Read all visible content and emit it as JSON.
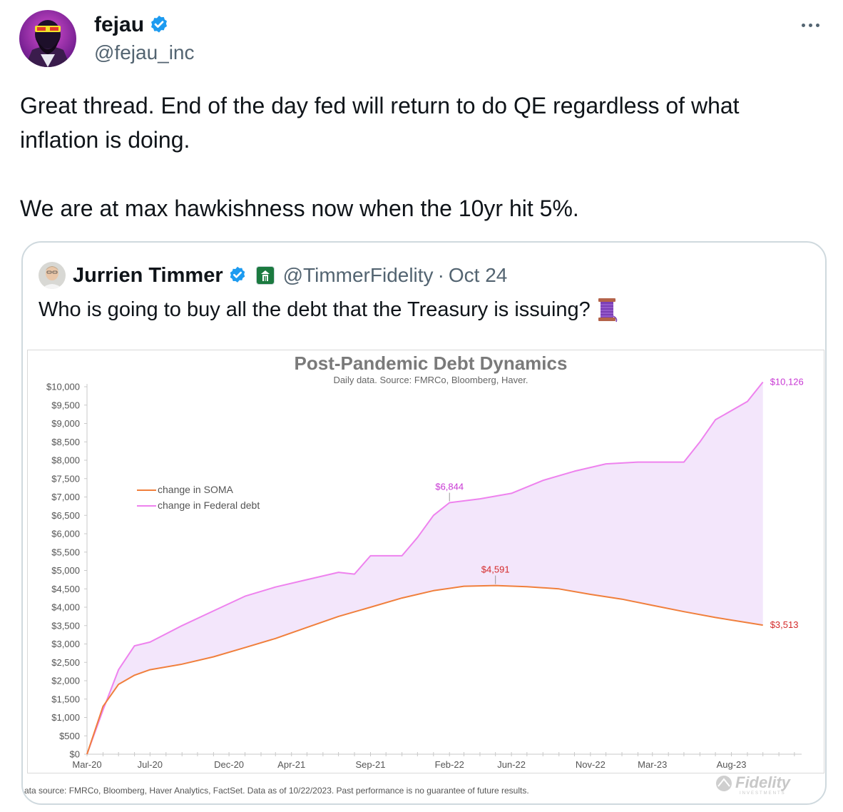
{
  "author": {
    "name": "fejau",
    "handle": "@fejau_inc",
    "verified_icon": "verified-badge-icon",
    "avatar_icon": "avatar-sunglasses-icon"
  },
  "more_icon": "more-options-icon",
  "tweet": {
    "text": "Great thread. End of the day fed will return to do QE regardless of what\ninflation is doing.\n\nWe are at max hawkishness now when the 10yr hit 5%."
  },
  "quote": {
    "name": "Jurrien Timmer",
    "handle": "@TimmerFidelity",
    "separator": "·",
    "date": "Oct 24",
    "text": "Who is going to buy all the debt that the Treasury is issuing?",
    "emoji_icon": "thread-spool-icon",
    "affiliate_icon": "fidelity-affiliate-icon"
  },
  "colors": {
    "soma": "#f07f3c",
    "debt": "#ee82ee",
    "fill": "#f3e6fb",
    "soma_label": "#d42a2a",
    "debt_label": "#c838d4"
  },
  "chart_data": {
    "type": "line",
    "title": "Post-Pandemic Debt Dynamics",
    "subtitle": "Daily data.  Source: FMRCo, Bloomberg, Haver.",
    "ylim": [
      0,
      10000
    ],
    "y_ticks": [
      "$0",
      "$500",
      "$1,000",
      "$1,500",
      "$2,000",
      "$2,500",
      "$3,000",
      "$3,500",
      "$4,000",
      "$4,500",
      "$5,000",
      "$5,500",
      "$6,000",
      "$6,500",
      "$7,000",
      "$7,500",
      "$8,000",
      "$8,500",
      "$9,000",
      "$9,500",
      "$10,000"
    ],
    "y_tick_values": [
      0,
      500,
      1000,
      1500,
      2000,
      2500,
      3000,
      3500,
      4000,
      4500,
      5000,
      5500,
      6000,
      6500,
      7000,
      7500,
      8000,
      8500,
      9000,
      9500,
      10000
    ],
    "x_ticks": [
      "Mar-20",
      "Jul-20",
      "Dec-20",
      "Apr-21",
      "Sep-21",
      "Feb-22",
      "Jun-22",
      "Nov-22",
      "Mar-23",
      "Aug-23"
    ],
    "x_tick_dates": [
      "2020-03",
      "2020-07",
      "2020-12",
      "2021-04",
      "2021-09",
      "2022-02",
      "2022-06",
      "2022-11",
      "2023-03",
      "2023-08"
    ],
    "legend": {
      "placement": "upper-left",
      "entries": [
        "change in SOMA",
        "change in Federal debt"
      ]
    },
    "series": [
      {
        "name": "change in SOMA",
        "x": [
          "2020-03",
          "2020-04",
          "2020-05",
          "2020-06",
          "2020-07",
          "2020-09",
          "2020-11",
          "2021-01",
          "2021-03",
          "2021-05",
          "2021-07",
          "2021-09",
          "2021-11",
          "2022-01",
          "2022-03",
          "2022-05",
          "2022-07",
          "2022-09",
          "2022-11",
          "2023-01",
          "2023-03",
          "2023-05",
          "2023-07",
          "2023-09",
          "2023-10"
        ],
        "values": [
          0,
          1300,
          1900,
          2150,
          2300,
          2450,
          2650,
          2900,
          3150,
          3450,
          3750,
          4000,
          4250,
          4450,
          4570,
          4591,
          4560,
          4500,
          4350,
          4220,
          4050,
          3880,
          3720,
          3580,
          3513
        ]
      },
      {
        "name": "change in Federal debt",
        "x": [
          "2020-03",
          "2020-04",
          "2020-05",
          "2020-06",
          "2020-07",
          "2020-09",
          "2020-11",
          "2021-01",
          "2021-03",
          "2021-05",
          "2021-07",
          "2021-08",
          "2021-09",
          "2021-11",
          "2021-12",
          "2022-01",
          "2022-02",
          "2022-04",
          "2022-06",
          "2022-08",
          "2022-10",
          "2022-12",
          "2023-02",
          "2023-05",
          "2023-06",
          "2023-07",
          "2023-09",
          "2023-10"
        ],
        "values": [
          0,
          1200,
          2300,
          2950,
          3050,
          3500,
          3900,
          4300,
          4550,
          4750,
          4950,
          4900,
          5400,
          5400,
          5900,
          6500,
          6844,
          6950,
          7100,
          7450,
          7700,
          7900,
          7950,
          7950,
          8500,
          9100,
          9600,
          10126
        ]
      }
    ],
    "annotations": [
      {
        "label": "$6,844",
        "series": "change in Federal debt",
        "x": "2022-02",
        "value": 6844
      },
      {
        "label": "$4,591",
        "series": "change in SOMA",
        "x": "2022-05",
        "value": 4591
      },
      {
        "label": "$10,126",
        "series": "change in Federal debt",
        "x": "2023-10",
        "value": 10126
      },
      {
        "label": "$3,513",
        "series": "change in SOMA",
        "x": "2023-10",
        "value": 3513
      }
    ],
    "grid": false
  },
  "footnote": "ata source: FMRCo, Bloomberg, Haver Analytics, FactSet. Data as of 10/22/2023. Past performance is no guarantee of future results.",
  "brand_logo": "Fidelity",
  "brand_logo_sub": "INVESTMENTS"
}
